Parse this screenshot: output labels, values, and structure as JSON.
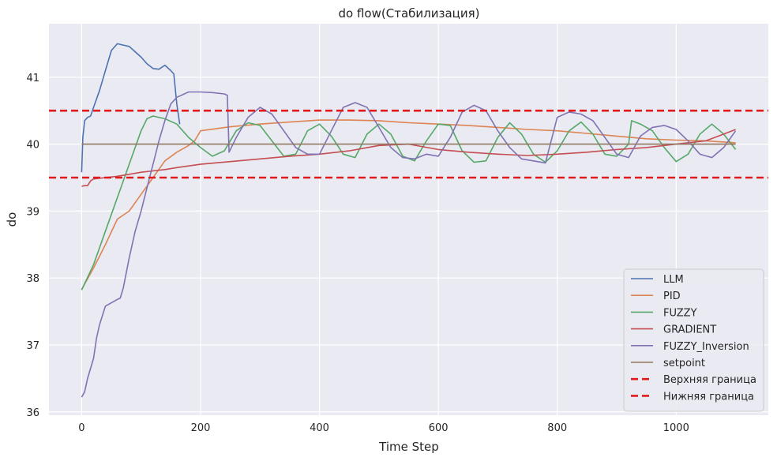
{
  "chart_data": {
    "type": "line",
    "title": "do flow(Стабилизация)",
    "xlabel": "Time Step",
    "ylabel": "do",
    "xlim": [
      -55,
      1155
    ],
    "ylim": [
      35.95,
      41.8
    ],
    "xticks": [
      0,
      200,
      400,
      600,
      800,
      1000
    ],
    "yticks": [
      36,
      37,
      38,
      39,
      40,
      41
    ],
    "grid": true,
    "background": "#eaeaf2",
    "legend_position": "lower-right",
    "series": [
      {
        "name": "LLM",
        "color": "#4c72b0",
        "style": "solid",
        "x": [
          0,
          2,
          5,
          10,
          15,
          20,
          30,
          40,
          50,
          60,
          70,
          80,
          90,
          100,
          110,
          120,
          130,
          140,
          150,
          155,
          160,
          165
        ],
        "y": [
          39.58,
          40.1,
          40.35,
          40.4,
          40.42,
          40.55,
          40.8,
          41.1,
          41.4,
          41.5,
          41.48,
          41.46,
          41.38,
          41.3,
          41.2,
          41.13,
          41.12,
          41.18,
          41.1,
          41.05,
          40.6,
          40.3
        ]
      },
      {
        "name": "PID",
        "color": "#dd8452",
        "style": "solid",
        "x": [
          0,
          20,
          40,
          60,
          80,
          100,
          120,
          140,
          160,
          180,
          190,
          200,
          250,
          300,
          350,
          400,
          450,
          500,
          550,
          600,
          650,
          700,
          750,
          800,
          850,
          900,
          950,
          1000,
          1050,
          1100
        ],
        "y": [
          37.83,
          38.15,
          38.5,
          38.88,
          39.0,
          39.25,
          39.5,
          39.75,
          39.88,
          39.98,
          40.05,
          40.2,
          40.26,
          40.3,
          40.33,
          40.36,
          40.36,
          40.35,
          40.32,
          40.3,
          40.28,
          40.25,
          40.22,
          40.2,
          40.16,
          40.12,
          40.08,
          40.06,
          40.05,
          40.02
        ]
      },
      {
        "name": "FUZZY",
        "color": "#55a868",
        "style": "solid",
        "x": [
          0,
          20,
          40,
          60,
          80,
          100,
          110,
          120,
          140,
          160,
          180,
          200,
          220,
          240,
          260,
          280,
          300,
          320,
          340,
          360,
          380,
          400,
          420,
          440,
          460,
          480,
          500,
          520,
          540,
          560,
          580,
          600,
          620,
          640,
          660,
          680,
          700,
          720,
          740,
          760,
          780,
          800,
          820,
          840,
          860,
          880,
          900,
          920,
          925,
          940,
          960,
          980,
          1000,
          1020,
          1040,
          1060,
          1080,
          1100
        ],
        "y": [
          37.82,
          38.2,
          38.7,
          39.2,
          39.7,
          40.2,
          40.38,
          40.42,
          40.38,
          40.3,
          40.1,
          39.95,
          39.82,
          39.9,
          40.2,
          40.32,
          40.28,
          40.05,
          39.82,
          39.85,
          40.2,
          40.3,
          40.12,
          39.85,
          39.8,
          40.15,
          40.3,
          40.15,
          39.82,
          39.75,
          40.05,
          40.3,
          40.28,
          39.9,
          39.73,
          39.75,
          40.1,
          40.32,
          40.15,
          39.85,
          39.73,
          39.9,
          40.2,
          40.33,
          40.15,
          39.85,
          39.82,
          40.0,
          40.35,
          40.3,
          40.2,
          39.95,
          39.74,
          39.85,
          40.15,
          40.3,
          40.15,
          39.92
        ]
      },
      {
        "name": "GRADIENT",
        "color": "#c44e52",
        "style": "solid",
        "x": [
          0,
          5,
          10,
          15,
          20,
          40,
          60,
          80,
          100,
          120,
          140,
          160,
          200,
          250,
          300,
          350,
          400,
          450,
          500,
          550,
          600,
          650,
          700,
          750,
          800,
          850,
          900,
          950,
          1000,
          1050,
          1080,
          1100
        ],
        "y": [
          39.37,
          39.38,
          39.38,
          39.45,
          39.48,
          39.5,
          39.52,
          39.55,
          39.58,
          39.6,
          39.62,
          39.65,
          39.7,
          39.74,
          39.78,
          39.82,
          39.85,
          39.9,
          39.98,
          40.0,
          39.92,
          39.88,
          39.85,
          39.83,
          39.85,
          39.88,
          39.92,
          39.95,
          40.0,
          40.05,
          40.15,
          40.22
        ]
      },
      {
        "name": "FUZZY_Inversion",
        "color": "#8172b3",
        "style": "solid",
        "x": [
          0,
          5,
          10,
          15,
          20,
          25,
          30,
          40,
          50,
          60,
          65,
          70,
          80,
          90,
          100,
          110,
          120,
          130,
          140,
          150,
          160,
          180,
          200,
          220,
          240,
          245,
          248,
          260,
          280,
          300,
          320,
          340,
          360,
          380,
          400,
          420,
          440,
          460,
          480,
          500,
          520,
          540,
          560,
          580,
          600,
          620,
          640,
          660,
          680,
          700,
          720,
          740,
          760,
          780,
          800,
          820,
          840,
          860,
          880,
          900,
          920,
          940,
          960,
          980,
          1000,
          1020,
          1040,
          1060,
          1080,
          1100
        ],
        "y": [
          36.22,
          36.3,
          36.5,
          36.65,
          36.8,
          37.1,
          37.3,
          37.58,
          37.63,
          37.68,
          37.7,
          37.85,
          38.3,
          38.7,
          39.0,
          39.35,
          39.7,
          40.05,
          40.35,
          40.6,
          40.7,
          40.78,
          40.78,
          40.77,
          40.75,
          40.73,
          39.88,
          40.1,
          40.4,
          40.55,
          40.45,
          40.2,
          39.95,
          39.85,
          39.85,
          40.2,
          40.55,
          40.62,
          40.55,
          40.25,
          39.95,
          39.8,
          39.78,
          39.85,
          39.82,
          40.1,
          40.48,
          40.58,
          40.5,
          40.2,
          39.95,
          39.78,
          39.75,
          39.72,
          40.4,
          40.48,
          40.45,
          40.35,
          40.1,
          39.85,
          39.8,
          40.12,
          40.25,
          40.28,
          40.22,
          40.05,
          39.85,
          39.8,
          39.95,
          40.2
        ]
      },
      {
        "name": "setpoint",
        "color": "#937860",
        "style": "solid",
        "x": [
          0,
          1100
        ],
        "y": [
          40.0,
          40.0
        ]
      },
      {
        "name": "Верхняя граница",
        "color": "#e31a1c",
        "style": "dashed",
        "x": [
          -55,
          1155
        ],
        "y": [
          40.5,
          40.5
        ]
      },
      {
        "name": "Нижняя граница",
        "color": "#e31a1c",
        "style": "dashed",
        "x": [
          -55,
          1155
        ],
        "y": [
          39.5,
          39.5
        ]
      }
    ]
  }
}
